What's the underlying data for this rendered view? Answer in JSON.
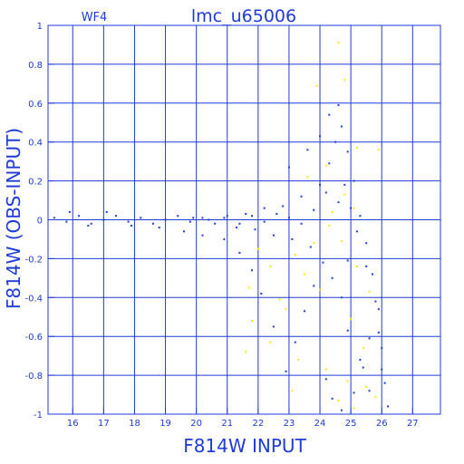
{
  "chart_data": {
    "type": "scatter",
    "title": "lmc_u65006",
    "panel_label": "WF4",
    "xlabel": "F814W INPUT",
    "ylabel": "F814W (OBS-INPUT)",
    "xlim": [
      15.2,
      27.9
    ],
    "ylim": [
      -1.0,
      1.0
    ],
    "x_ticks": [
      16,
      17,
      18,
      19,
      20,
      21,
      22,
      23,
      24,
      25,
      26,
      27
    ],
    "x_tick_labels": [
      "16",
      "17",
      "18",
      "19",
      "20",
      "21",
      "22",
      "23",
      "24",
      "25",
      "26",
      "27"
    ],
    "y_ticks": [
      -1.0,
      -0.8,
      -0.6,
      -0.4,
      -0.2,
      0.0,
      0.2,
      0.4,
      0.6,
      0.8,
      1.0
    ],
    "y_tick_labels": [
      "-1",
      "-0.8",
      "-0.6",
      "-0.4",
      "-0.2",
      "0",
      "0.2",
      "0.4",
      "0.6",
      "0.8",
      "1"
    ],
    "grid": true,
    "colors": {
      "axis": "#1f3bd8",
      "blue_points": "#1f3bd8",
      "yellow_points": "#ffe600"
    },
    "series": [
      {
        "color": "blue_points",
        "points": [
          [
            15.4,
            0.01
          ],
          [
            15.8,
            -0.01
          ],
          [
            16.2,
            0.02
          ],
          [
            16.6,
            -0.02
          ],
          [
            17.0,
            0.0
          ],
          [
            17.4,
            0.02
          ],
          [
            17.8,
            -0.01
          ],
          [
            18.2,
            0.01
          ],
          [
            18.6,
            -0.02
          ],
          [
            19.0,
            0.0
          ],
          [
            19.4,
            0.02
          ],
          [
            19.8,
            -0.01
          ],
          [
            20.2,
            0.01
          ],
          [
            20.6,
            -0.02
          ],
          [
            21.0,
            0.02
          ],
          [
            21.3,
            -0.04
          ],
          [
            21.6,
            0.03
          ],
          [
            21.9,
            -0.05
          ],
          [
            22.2,
            0.06
          ],
          [
            22.5,
            -0.08
          ],
          [
            22.8,
            0.07
          ],
          [
            23.1,
            -0.1
          ],
          [
            23.4,
            0.12
          ],
          [
            23.7,
            -0.14
          ],
          [
            24.0,
            0.18
          ],
          [
            24.3,
            0.29
          ],
          [
            24.5,
            0.4
          ],
          [
            24.7,
            0.48
          ],
          [
            24.9,
            0.35
          ],
          [
            25.1,
            0.2
          ],
          [
            25.3,
            0.02
          ],
          [
            25.5,
            -0.12
          ],
          [
            25.7,
            -0.28
          ],
          [
            25.9,
            -0.46
          ],
          [
            26.0,
            -0.66
          ],
          [
            26.1,
            -0.84
          ],
          [
            26.2,
            -0.96
          ],
          [
            25.6,
            -0.88
          ],
          [
            25.3,
            -0.72
          ],
          [
            24.9,
            -0.57
          ],
          [
            24.7,
            -0.4
          ],
          [
            24.4,
            -0.3
          ],
          [
            24.1,
            -0.22
          ],
          [
            23.8,
            -0.34
          ],
          [
            23.5,
            -0.47
          ],
          [
            23.2,
            -0.63
          ],
          [
            22.9,
            -0.78
          ],
          [
            22.5,
            -0.55
          ],
          [
            22.1,
            -0.38
          ],
          [
            21.8,
            -0.26
          ],
          [
            21.4,
            -0.17
          ],
          [
            20.9,
            -0.1
          ],
          [
            20.2,
            -0.08
          ],
          [
            19.6,
            -0.06
          ],
          [
            18.8,
            -0.04
          ],
          [
            17.9,
            -0.03
          ],
          [
            17.1,
            0.04
          ],
          [
            16.5,
            -0.03
          ],
          [
            15.9,
            0.04
          ],
          [
            23.0,
            0.27
          ],
          [
            23.6,
            0.36
          ],
          [
            24.0,
            0.43
          ],
          [
            24.3,
            0.54
          ],
          [
            24.6,
            0.59
          ],
          [
            24.8,
            0.18
          ],
          [
            25.0,
            0.06
          ],
          [
            25.2,
            -0.06
          ],
          [
            25.5,
            -0.24
          ],
          [
            25.8,
            -0.42
          ],
          [
            25.9,
            -0.58
          ],
          [
            26.0,
            -0.77
          ],
          [
            24.2,
            -0.82
          ],
          [
            24.4,
            -0.92
          ],
          [
            24.7,
            -0.98
          ],
          [
            25.1,
            -0.89
          ],
          [
            25.4,
            -0.76
          ],
          [
            25.6,
            -0.61
          ],
          [
            24.9,
            -0.21
          ],
          [
            24.6,
            0.09
          ],
          [
            24.2,
            0.14
          ],
          [
            23.8,
            0.05
          ],
          [
            23.4,
            -0.02
          ],
          [
            23.0,
            0.01
          ],
          [
            22.6,
            0.03
          ],
          [
            22.2,
            -0.01
          ],
          [
            21.8,
            0.02
          ],
          [
            21.4,
            -0.02
          ],
          [
            20.9,
            0.01
          ],
          [
            20.4,
            0.0
          ],
          [
            19.9,
            0.01
          ]
        ]
      },
      {
        "color": "yellow_points",
        "points": [
          [
            24.6,
            0.91
          ],
          [
            24.8,
            0.72
          ],
          [
            23.9,
            0.69
          ],
          [
            25.2,
            0.37
          ],
          [
            25.9,
            0.36
          ],
          [
            24.2,
            0.28
          ],
          [
            23.6,
            0.22
          ],
          [
            24.8,
            0.13
          ],
          [
            25.1,
            0.06
          ],
          [
            24.3,
            -0.03
          ],
          [
            23.8,
            -0.12
          ],
          [
            22.4,
            -0.24
          ],
          [
            21.7,
            -0.35
          ],
          [
            22.9,
            -0.46
          ],
          [
            21.8,
            -0.52
          ],
          [
            22.4,
            -0.63
          ],
          [
            21.6,
            -0.68
          ],
          [
            23.3,
            -0.72
          ],
          [
            24.2,
            -0.77
          ],
          [
            24.9,
            -0.83
          ],
          [
            25.5,
            -0.86
          ],
          [
            23.1,
            -0.88
          ],
          [
            24.6,
            -0.93
          ],
          [
            25.1,
            -0.97
          ],
          [
            22.7,
            -0.41
          ],
          [
            23.5,
            -0.28
          ],
          [
            24.0,
            -0.36
          ],
          [
            25.0,
            -0.51
          ],
          [
            25.4,
            -0.66
          ],
          [
            25.8,
            -0.91
          ],
          [
            22.0,
            -0.15
          ],
          [
            23.2,
            -0.18
          ],
          [
            24.4,
            0.04
          ],
          [
            24.7,
            -0.11
          ],
          [
            25.2,
            -0.24
          ],
          [
            25.6,
            -0.37
          ]
        ]
      }
    ]
  }
}
